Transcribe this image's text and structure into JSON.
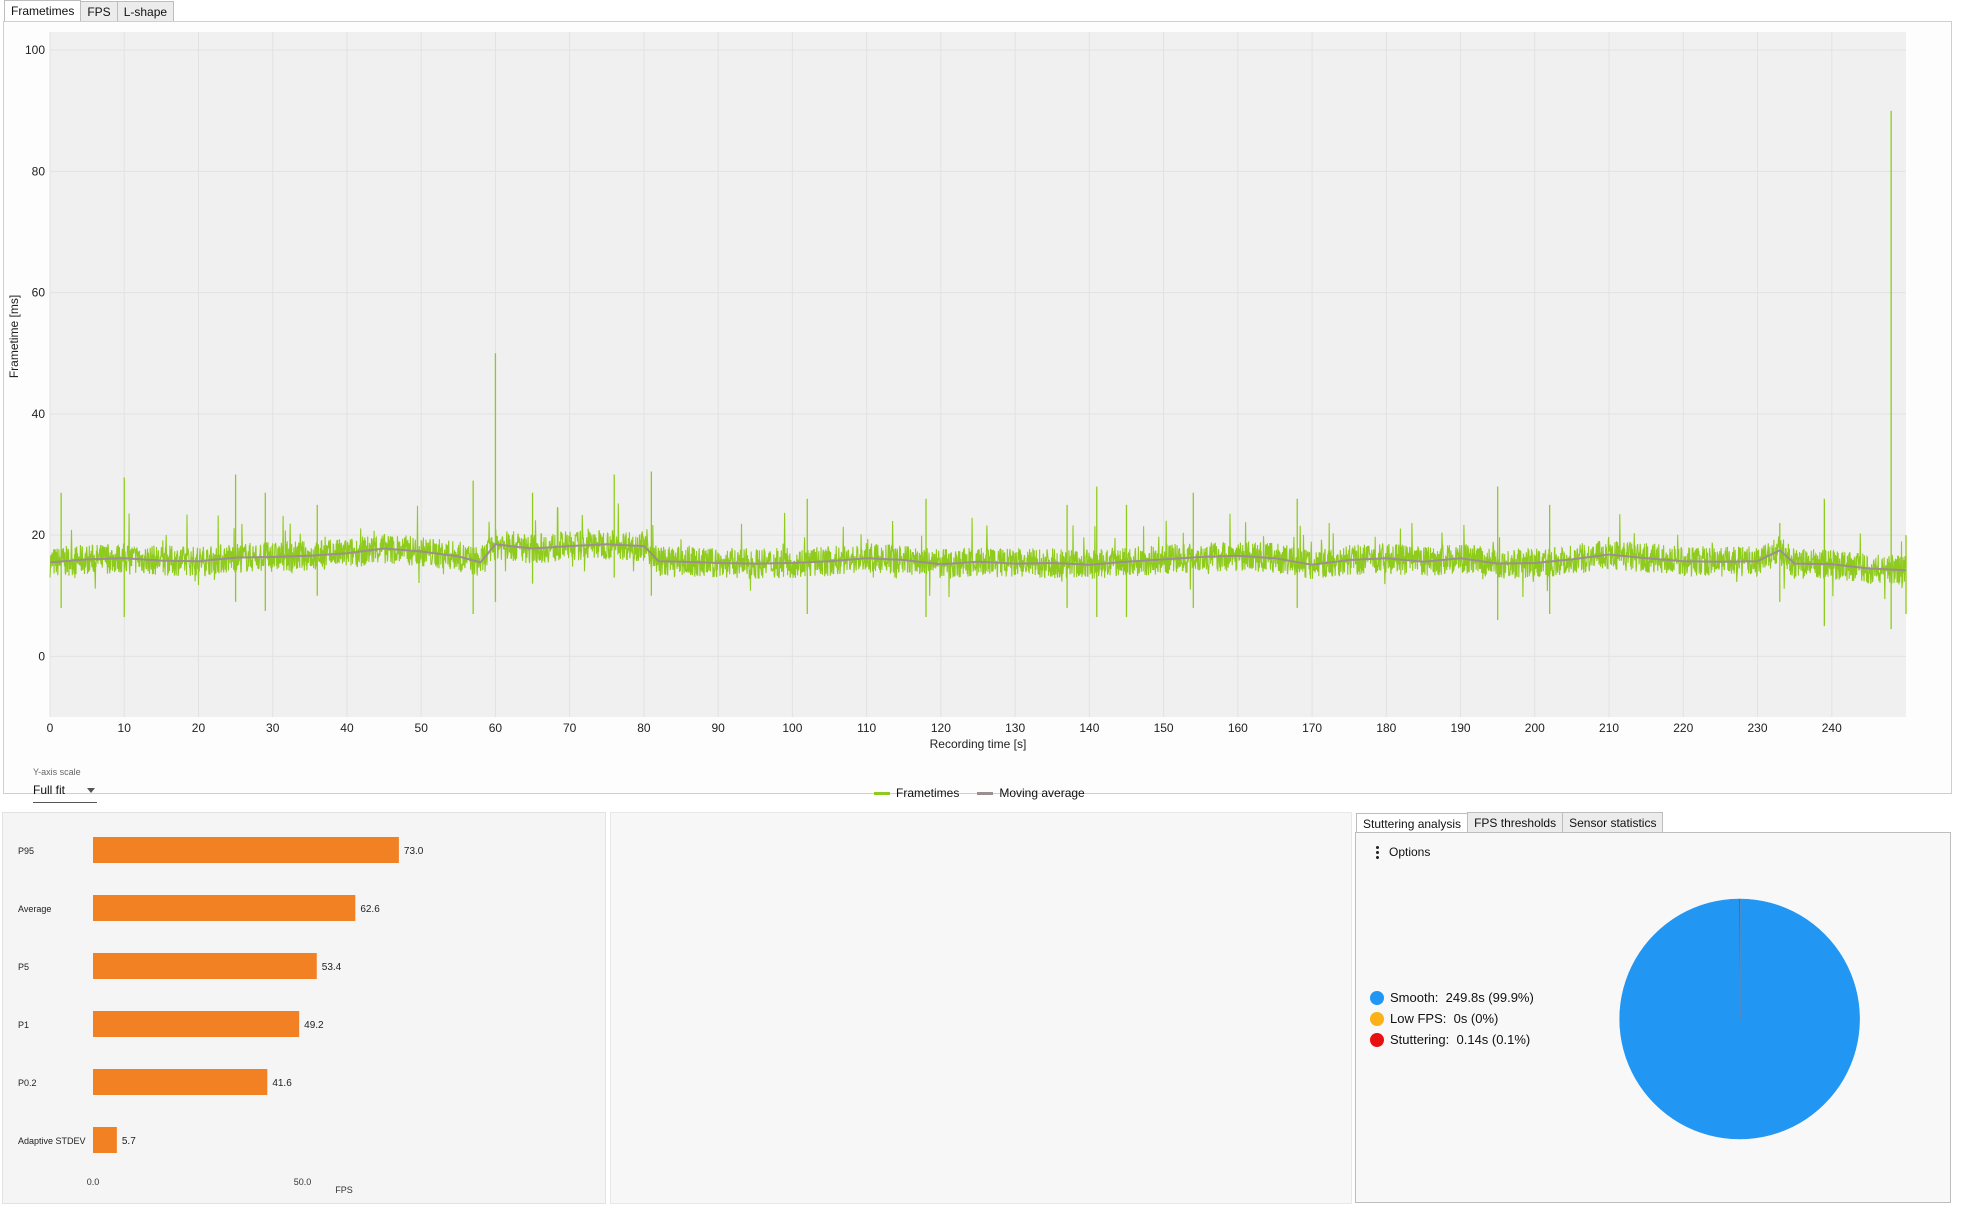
{
  "tabs": [
    "Frametimes",
    "FPS",
    "L-shape"
  ],
  "frametime_chart": {
    "ylabel": "Frametime [ms]",
    "xlabel": "Recording time [s]",
    "y_scale_label": "Y-axis scale",
    "y_scale_value": "Full fit",
    "legend": [
      "Frametimes",
      "Moving average"
    ],
    "colors": {
      "frametimes": "#8fcb1c",
      "moving_average": "#9b8f8f"
    }
  },
  "stutter_tabs": [
    "Stuttering analysis",
    "FPS thresholds",
    "Sensor statistics"
  ],
  "stutter": {
    "options_label": "Options",
    "legend": [
      {
        "label": "Smooth:",
        "value": "249.8s (99.9%)",
        "color": "#2196f3"
      },
      {
        "label": "Low FPS:",
        "value": "0s (0%)",
        "color": "#fbb117"
      },
      {
        "label": "Stuttering:",
        "value": "0.14s (0.1%)",
        "color": "#e81010"
      }
    ]
  },
  "chart_data": [
    {
      "type": "line",
      "xlabel": "Recording time [s]",
      "ylabel": "Frametime [ms]",
      "xlim": [
        0,
        250
      ],
      "ylim": [
        -10,
        103
      ],
      "xticks": [
        0,
        10,
        20,
        30,
        40,
        50,
        60,
        70,
        80,
        90,
        100,
        110,
        120,
        130,
        140,
        150,
        160,
        170,
        180,
        190,
        200,
        210,
        220,
        230,
        240
      ],
      "yticks": [
        0,
        20,
        40,
        60,
        80,
        100
      ],
      "series": [
        {
          "name": "Moving average",
          "x": [
            0,
            5,
            10,
            15,
            20,
            25,
            30,
            35,
            40,
            45,
            50,
            55,
            58,
            60,
            62,
            65,
            70,
            75,
            80,
            82,
            85,
            90,
            95,
            100,
            105,
            110,
            115,
            120,
            125,
            130,
            135,
            140,
            145,
            150,
            155,
            160,
            165,
            170,
            175,
            180,
            185,
            190,
            195,
            200,
            205,
            210,
            215,
            220,
            225,
            230,
            233,
            235,
            240,
            245,
            250
          ],
          "y": [
            15.5,
            16,
            16.2,
            15.8,
            15.7,
            16.3,
            16.4,
            16.6,
            17,
            17.8,
            17.3,
            16.5,
            15.5,
            18.5,
            18.2,
            17.8,
            18.2,
            18.5,
            18.2,
            15.7,
            15.6,
            15.4,
            15.3,
            15.4,
            15.7,
            16.2,
            15.9,
            15.2,
            15.6,
            15.3,
            15.4,
            15.1,
            15.6,
            16,
            16.4,
            16.6,
            16.2,
            15.1,
            15.9,
            16.2,
            15.6,
            16.2,
            15.3,
            15.4,
            16,
            16.8,
            16.2,
            15.7,
            15.6,
            15.7,
            17.5,
            15.3,
            15.2,
            14.5,
            14.2
          ]
        },
        {
          "name": "Frametimes",
          "spikes": [
            {
              "x": 1.5,
              "low": 8,
              "high": 27
            },
            {
              "x": 10,
              "low": 6.5,
              "high": 29.5
            },
            {
              "x": 25,
              "low": 9,
              "high": 30
            },
            {
              "x": 29,
              "low": 7.5,
              "high": 27
            },
            {
              "x": 36,
              "low": 10,
              "high": 25
            },
            {
              "x": 57,
              "low": 7,
              "high": 29
            },
            {
              "x": 60,
              "low": 9,
              "high": 50
            },
            {
              "x": 65,
              "low": 12,
              "high": 27
            },
            {
              "x": 76,
              "low": 13,
              "high": 30
            },
            {
              "x": 81,
              "low": 10,
              "high": 30.5
            },
            {
              "x": 102,
              "low": 7,
              "high": 26
            },
            {
              "x": 118,
              "low": 6.5,
              "high": 26
            },
            {
              "x": 137,
              "low": 8,
              "high": 25
            },
            {
              "x": 141,
              "low": 6.5,
              "high": 28
            },
            {
              "x": 145,
              "low": 6.5,
              "high": 25
            },
            {
              "x": 154,
              "low": 8,
              "high": 27
            },
            {
              "x": 168,
              "low": 8,
              "high": 26
            },
            {
              "x": 195,
              "low": 6,
              "high": 28
            },
            {
              "x": 202,
              "low": 7,
              "high": 25
            },
            {
              "x": 233,
              "low": 9,
              "high": 22
            },
            {
              "x": 239,
              "low": 5,
              "high": 26
            },
            {
              "x": 248,
              "low": 4.5,
              "high": 90
            },
            {
              "x": 250,
              "low": 7,
              "high": 20
            }
          ]
        }
      ]
    },
    {
      "type": "bar",
      "orientation": "horizontal",
      "categories": [
        "P95",
        "Average",
        "P5",
        "P1",
        "P0.2",
        "Adaptive STDEV"
      ],
      "values": [
        73.0,
        62.6,
        53.4,
        49.2,
        41.6,
        5.7
      ],
      "value_labels": [
        "73.0",
        "62.6",
        "53.4",
        "49.2",
        "41.6",
        "5.7"
      ],
      "xlabel": "FPS",
      "xticks": [
        "0.0",
        "50.0"
      ],
      "xlim": [
        0,
        105
      ],
      "color": "#f28124"
    },
    {
      "type": "pie",
      "categories": [
        "Smooth",
        "Low FPS",
        "Stuttering"
      ],
      "values": [
        99.9,
        0,
        0.1
      ],
      "colors": [
        "#2196f3",
        "#fbb117",
        "#e81010"
      ]
    }
  ]
}
